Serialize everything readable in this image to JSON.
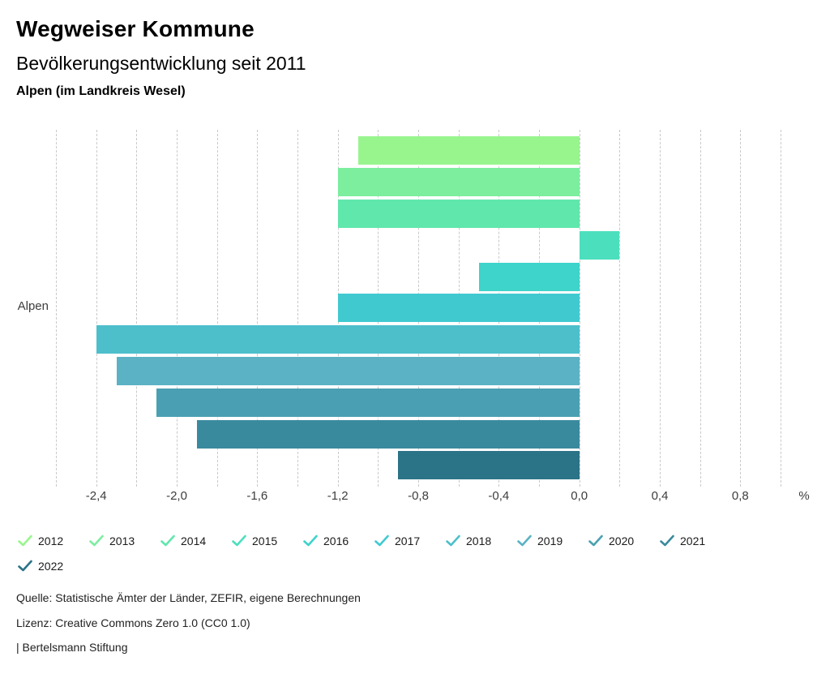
{
  "header": {
    "title": "Wegweiser Kommune",
    "subtitle": "Bevölkerungsentwicklung seit 2011",
    "location": "Alpen (im Landkreis Wesel)"
  },
  "chart_data": {
    "type": "bar",
    "orientation": "horizontal",
    "title": "Bevölkerungsentwicklung seit 2011",
    "category_label": "Alpen",
    "unit": "%",
    "xlim": [
      -2.6,
      1.0
    ],
    "grid_step": 0.2,
    "grid": true,
    "legend_position": "bottom",
    "series": [
      {
        "name": "2012",
        "value": -1.1,
        "color": "#98f58e"
      },
      {
        "name": "2013",
        "value": -1.2,
        "color": "#7cee9e"
      },
      {
        "name": "2014",
        "value": -1.2,
        "color": "#60e7ac"
      },
      {
        "name": "2015",
        "value": 0.2,
        "color": "#4cdfbe"
      },
      {
        "name": "2016",
        "value": -0.5,
        "color": "#3ed3cb"
      },
      {
        "name": "2017",
        "value": -1.2,
        "color": "#40cad0"
      },
      {
        "name": "2018",
        "value": -2.4,
        "color": "#4dbfcb"
      },
      {
        "name": "2019",
        "value": -2.3,
        "color": "#5bb2c4"
      },
      {
        "name": "2020",
        "value": -2.1,
        "color": "#4aa0b2"
      },
      {
        "name": "2021",
        "value": -1.9,
        "color": "#3a8a9e"
      },
      {
        "name": "2022",
        "value": -0.9,
        "color": "#2b7386"
      }
    ],
    "tick_labels": [
      {
        "value": -2.4,
        "label": "-2,4"
      },
      {
        "value": -2.0,
        "label": "-2,0"
      },
      {
        "value": -1.6,
        "label": "-1,6"
      },
      {
        "value": -1.2,
        "label": "-1,2"
      },
      {
        "value": -0.8,
        "label": "-0,8"
      },
      {
        "value": -0.4,
        "label": "-0,4"
      },
      {
        "value": 0.0,
        "label": "0,0"
      },
      {
        "value": 0.4,
        "label": "0,4"
      },
      {
        "value": 0.8,
        "label": "0,8"
      }
    ]
  },
  "footer": {
    "source": "Quelle: Statistische Ämter der Länder, ZEFIR, eigene Berechnungen",
    "license": "Lizenz: Creative Commons Zero 1.0 (CC0 1.0)",
    "attribution": "| Bertelsmann Stiftung"
  }
}
